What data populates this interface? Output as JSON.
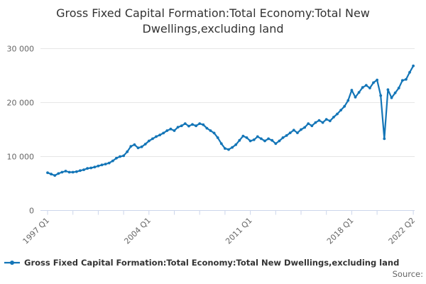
{
  "title": {
    "text": "Gross Fixed Capital Formation:Total Economy:Total New Dwellings,excluding land"
  },
  "legend": {
    "items": [
      {
        "label": "Gross Fixed Capital Formation:Total Economy:Total New Dwellings,excluding land",
        "color": "#1375b7"
      }
    ]
  },
  "footer": {
    "source_label": "Source:"
  },
  "colors": {
    "line": "#1375b7",
    "grid": "#e6e6e6",
    "axis": "#ccd6eb",
    "tick_text": "#666666",
    "title_text": "#333333",
    "legend_text": "#333333",
    "source_text": "#666666"
  },
  "chart_data": {
    "type": "line",
    "title": "Gross Fixed Capital Formation:Total Economy:Total New Dwellings,excluding land",
    "x_start": "1997 Q1",
    "x_end": "2022 Q2",
    "frequency": "quarterly",
    "ylim": [
      0,
      30000
    ],
    "grid": "horizontal-only",
    "legend_position": "bottom-left",
    "y_ticks": [
      {
        "value": 0,
        "label": "0"
      },
      {
        "value": 10000,
        "label": "10 000"
      },
      {
        "value": 20000,
        "label": "20 000"
      },
      {
        "value": 30000,
        "label": "30 000"
      }
    ],
    "x_labeled_ticks": [
      {
        "index": 0,
        "label": "1997 Q1"
      },
      {
        "index": 28,
        "label": "2004 Q1"
      },
      {
        "index": 56,
        "label": "2011 Q1"
      },
      {
        "index": 84,
        "label": "2018 Q1"
      },
      {
        "index": 101,
        "label": "2022 Q2"
      }
    ],
    "x_tick_indices": [
      0,
      7,
      14,
      21,
      28,
      35,
      42,
      49,
      56,
      63,
      70,
      77,
      84,
      91,
      101
    ],
    "series": [
      {
        "name": "Gross Fixed Capital Formation:Total Economy:Total New Dwellings,excluding land",
        "color": "#1375b7",
        "values": [
          7000,
          6750,
          6500,
          6850,
          7100,
          7300,
          7100,
          7100,
          7200,
          7400,
          7550,
          7800,
          7900,
          8050,
          8250,
          8450,
          8600,
          8800,
          9200,
          9700,
          10000,
          10150,
          10900,
          11900,
          12200,
          11600,
          11800,
          12300,
          12900,
          13300,
          13700,
          14000,
          14350,
          14800,
          15100,
          14800,
          15450,
          15700,
          16100,
          15650,
          15950,
          15700,
          16100,
          15900,
          15250,
          14800,
          14350,
          13500,
          12400,
          11500,
          11300,
          11700,
          12200,
          13000,
          13800,
          13500,
          12900,
          13100,
          13700,
          13300,
          12900,
          13300,
          13000,
          12400,
          12900,
          13500,
          13900,
          14400,
          14900,
          14400,
          15000,
          15400,
          16100,
          15700,
          16300,
          16700,
          16300,
          16900,
          16600,
          17300,
          17900,
          18600,
          19300,
          20400,
          22300,
          21000,
          21900,
          22800,
          23200,
          22700,
          23700,
          24200,
          21300,
          13300,
          22400,
          20900,
          21800,
          22700,
          24100,
          24300,
          25600,
          26800
        ]
      }
    ]
  }
}
